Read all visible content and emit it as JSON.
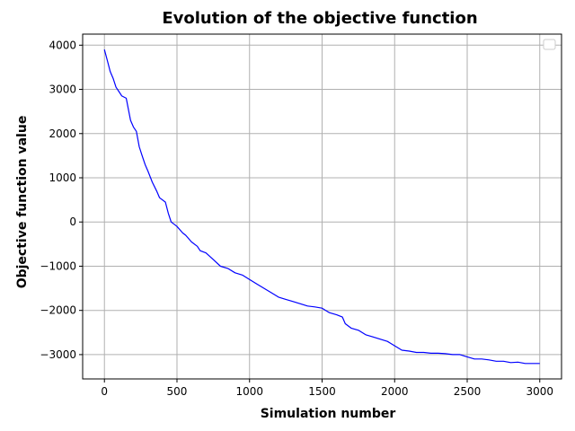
{
  "chart_data": {
    "type": "line",
    "title": "Evolution of the objective function",
    "xlabel": "Simulation number",
    "ylabel": "Objective function value",
    "xlim": [
      -150,
      3150
    ],
    "ylim": [
      -3550,
      4250
    ],
    "xticks": [
      0,
      500,
      1000,
      1500,
      2000,
      2500,
      3000
    ],
    "yticks": [
      -3000,
      -2000,
      -1000,
      0,
      1000,
      2000,
      3000,
      4000
    ],
    "grid": true,
    "legend": "top-right (empty)",
    "series": [
      {
        "color": "#0000ff",
        "x": [
          0,
          20,
          40,
          60,
          80,
          100,
          120,
          150,
          180,
          200,
          220,
          240,
          260,
          280,
          300,
          330,
          360,
          380,
          420,
          440,
          460,
          480,
          500,
          540,
          560,
          600,
          640,
          660,
          700,
          750,
          800,
          850,
          900,
          950,
          1000,
          1050,
          1100,
          1150,
          1200,
          1250,
          1300,
          1350,
          1400,
          1450,
          1500,
          1550,
          1600,
          1640,
          1660,
          1700,
          1750,
          1800,
          1850,
          1900,
          1950,
          2000,
          2050,
          2100,
          2150,
          2200,
          2250,
          2300,
          2350,
          2400,
          2450,
          2500,
          2550,
          2600,
          2650,
          2700,
          2750,
          2800,
          2850,
          2900,
          2950,
          3000
        ],
        "y": [
          3900,
          3650,
          3400,
          3250,
          3050,
          2950,
          2850,
          2800,
          2300,
          2150,
          2050,
          1700,
          1500,
          1300,
          1150,
          900,
          700,
          550,
          450,
          200,
          0,
          -50,
          -100,
          -250,
          -300,
          -450,
          -550,
          -650,
          -700,
          -850,
          -1000,
          -1050,
          -1150,
          -1200,
          -1300,
          -1400,
          -1500,
          -1600,
          -1700,
          -1750,
          -1800,
          -1850,
          -1900,
          -1920,
          -1950,
          -2050,
          -2100,
          -2150,
          -2300,
          -2400,
          -2450,
          -2550,
          -2600,
          -2650,
          -2700,
          -2800,
          -2900,
          -2920,
          -2950,
          -2950,
          -2970,
          -2970,
          -2980,
          -3000,
          -3000,
          -3050,
          -3100,
          -3100,
          -3120,
          -3150,
          -3150,
          -3180,
          -3170,
          -3200,
          -3200,
          -3200
        ]
      }
    ]
  }
}
